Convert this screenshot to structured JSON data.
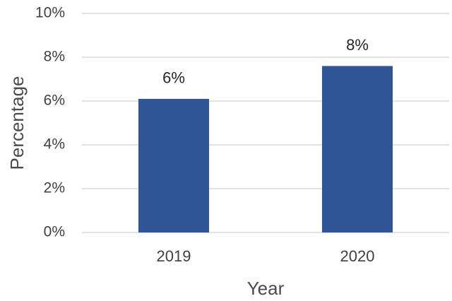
{
  "chart_data": {
    "type": "bar",
    "title": "",
    "xlabel": "Year",
    "ylabel": "Percentage",
    "categories": [
      "2019",
      "2020"
    ],
    "values": [
      6.1,
      7.6
    ],
    "data_labels": [
      "6%",
      "8%"
    ],
    "ylim": [
      0,
      10
    ],
    "y_ticks": [
      0,
      2,
      4,
      6,
      8,
      10
    ],
    "y_tick_labels": [
      "0%",
      "2%",
      "4%",
      "6%",
      "8%",
      "10%"
    ],
    "grid": "horizontal",
    "legend": "none",
    "bar_color": "#2F5597"
  }
}
